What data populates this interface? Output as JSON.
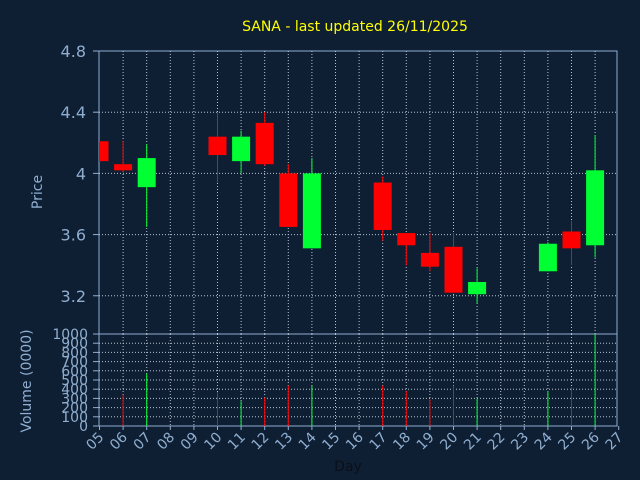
{
  "title": "SANA - last updated 26/11/2025",
  "chart_data": {
    "type": "candlestick",
    "title": "SANA - last updated 26/11/2025",
    "xlabel": "Day",
    "ylabel": "Price",
    "volume_label": "Volume (0000)",
    "x_ticks": [
      "05",
      "06",
      "07",
      "08",
      "09",
      "10",
      "11",
      "12",
      "13",
      "14",
      "15",
      "16",
      "17",
      "18",
      "19",
      "20",
      "21",
      "22",
      "23",
      "24",
      "25",
      "26",
      "27"
    ],
    "price_ticks": [
      "4.8",
      "4.4",
      "4",
      "3.6",
      "3.2"
    ],
    "price_tick_values": [
      4.8,
      4.4,
      4.0,
      3.6,
      3.2
    ],
    "price_ylim": [
      2.95,
      4.8
    ],
    "volume_ticks": [
      "1000",
      "900",
      "800",
      "700",
      "600",
      "500",
      "400",
      "300",
      "200",
      "100",
      "0"
    ],
    "volume_tick_values": [
      1000,
      900,
      800,
      700,
      600,
      500,
      400,
      300,
      200,
      100,
      0
    ],
    "volume_ylim": [
      0,
      1000
    ],
    "grid": true,
    "up_color": "#00ff33",
    "down_color": "#ff0000",
    "candles": [
      {
        "day": "05",
        "open": 4.21,
        "high": 4.21,
        "low": 4.08,
        "close": 4.08,
        "volume": 0
      },
      {
        "day": "06",
        "open": 4.06,
        "high": 4.21,
        "low": 4.01,
        "close": 4.02,
        "volume": 340
      },
      {
        "day": "07",
        "open": 3.91,
        "high": 4.19,
        "low": 3.65,
        "close": 4.1,
        "volume": 570
      },
      {
        "day": "10",
        "open": 4.24,
        "high": 4.4,
        "low": 3.94,
        "close": 4.12,
        "volume": 370
      },
      {
        "day": "11",
        "open": 4.08,
        "high": 4.28,
        "low": 4.0,
        "close": 4.24,
        "volume": 270
      },
      {
        "day": "12",
        "open": 4.33,
        "high": 4.4,
        "low": 4.05,
        "close": 4.06,
        "volume": 310
      },
      {
        "day": "13",
        "open": 4.0,
        "high": 4.06,
        "low": 3.65,
        "close": 3.65,
        "volume": 440
      },
      {
        "day": "14",
        "open": 3.51,
        "high": 4.1,
        "low": 3.51,
        "close": 4.0,
        "volume": 440
      },
      {
        "day": "17",
        "open": 3.94,
        "high": 3.98,
        "low": 3.56,
        "close": 3.63,
        "volume": 440
      },
      {
        "day": "18",
        "open": 3.61,
        "high": 3.61,
        "low": 3.4,
        "close": 3.53,
        "volume": 380
      },
      {
        "day": "19",
        "open": 3.48,
        "high": 3.61,
        "low": 3.36,
        "close": 3.39,
        "volume": 290
      },
      {
        "day": "20",
        "open": 3.52,
        "high": 3.61,
        "low": 3.22,
        "close": 3.22,
        "volume": 440
      },
      {
        "day": "21",
        "open": 3.21,
        "high": 3.38,
        "low": 3.15,
        "close": 3.29,
        "volume": 300
      },
      {
        "day": "24",
        "open": 3.36,
        "high": 3.55,
        "low": 3.36,
        "close": 3.54,
        "volume": 380
      },
      {
        "day": "25",
        "open": 3.62,
        "high": 3.69,
        "low": 3.4,
        "close": 3.51,
        "volume": 420
      },
      {
        "day": "26",
        "open": 3.53,
        "high": 4.25,
        "low": 3.45,
        "close": 4.02,
        "volume": 1000
      }
    ]
  }
}
